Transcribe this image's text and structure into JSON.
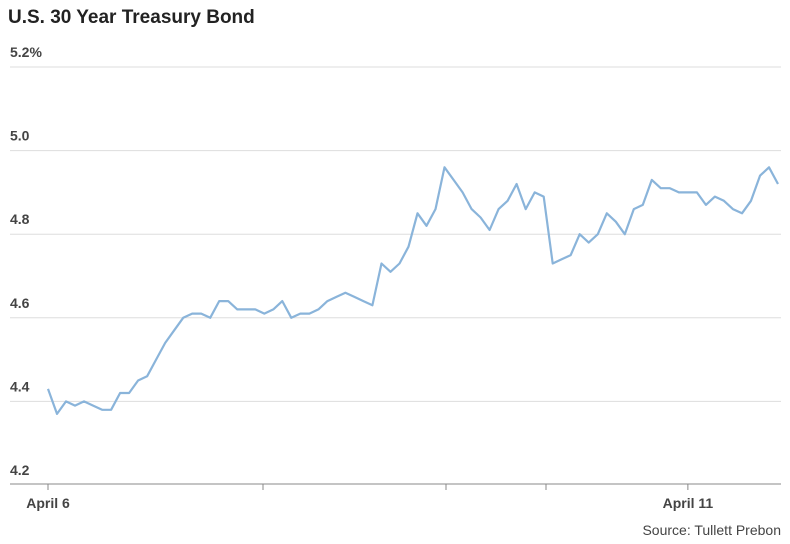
{
  "chart_data": {
    "type": "line",
    "title": "U.S. 30 Year Treasury Bond",
    "source": "Source: Tullett Prebon",
    "categories": [
      "April 6",
      null,
      null,
      null,
      null,
      null,
      null,
      null,
      null,
      null,
      null,
      null,
      null,
      null,
      null,
      null,
      null,
      null,
      null,
      null,
      null,
      null,
      null,
      null,
      null,
      null,
      null,
      null,
      null,
      null,
      null,
      null,
      null,
      null,
      null,
      null,
      null,
      null,
      null,
      null,
      null,
      null,
      null,
      null,
      null,
      null,
      null,
      null,
      null,
      null,
      null,
      null,
      null,
      null,
      null,
      null,
      null,
      null,
      null,
      null,
      null,
      null,
      null,
      null,
      null,
      null,
      null,
      null,
      null,
      null,
      null,
      "April 11",
      null,
      null,
      null,
      null,
      null,
      null,
      null,
      null,
      null,
      null
    ],
    "values": [
      4.43,
      4.37,
      4.4,
      4.39,
      4.4,
      4.39,
      4.38,
      4.38,
      4.42,
      4.42,
      4.45,
      4.46,
      4.5,
      4.54,
      4.57,
      4.6,
      4.61,
      4.61,
      4.6,
      4.64,
      4.64,
      4.62,
      4.62,
      4.62,
      4.61,
      4.62,
      4.64,
      4.6,
      4.61,
      4.61,
      4.62,
      4.64,
      4.65,
      4.66,
      4.65,
      4.64,
      4.63,
      4.73,
      4.71,
      4.73,
      4.77,
      4.85,
      4.82,
      4.86,
      4.96,
      4.93,
      4.9,
      4.86,
      4.84,
      4.81,
      4.86,
      4.88,
      4.92,
      4.86,
      4.9,
      4.89,
      4.73,
      4.74,
      4.75,
      4.8,
      4.78,
      4.8,
      4.85,
      4.83,
      4.8,
      4.86,
      4.87,
      4.93,
      4.91,
      4.91,
      4.9,
      4.9,
      4.9,
      4.87,
      4.89,
      4.88,
      4.86,
      4.85,
      4.88,
      4.94,
      4.96,
      4.92
    ],
    "color": "#8ab4da",
    "ylim": [
      4.2,
      5.2
    ],
    "yticks": [
      {
        "value": 4.2,
        "label": "4.2"
      },
      4.4,
      4.6,
      4.8,
      {
        "value": 5.0,
        "label": "5.0"
      },
      {
        "value": 5.2,
        "label": "5.2%"
      }
    ],
    "grid": true
  }
}
